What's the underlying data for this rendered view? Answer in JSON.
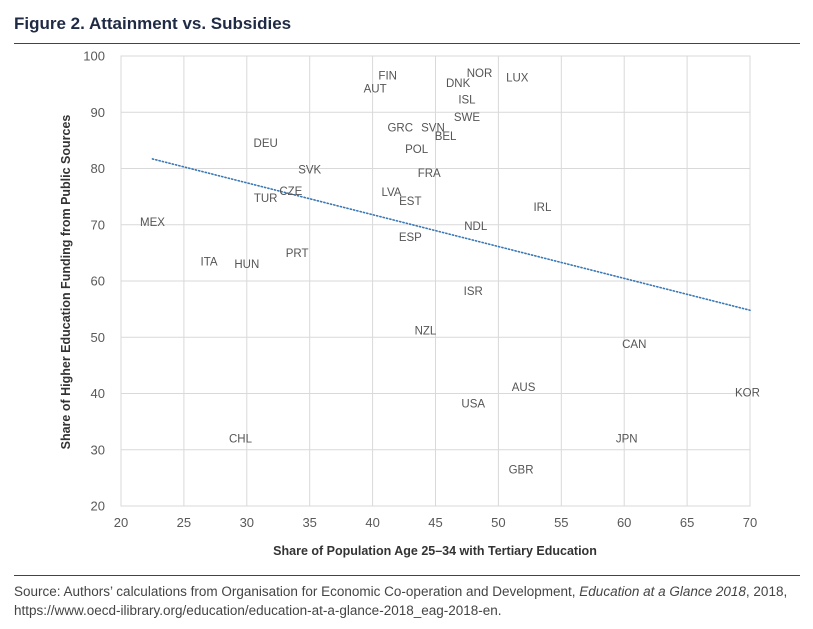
{
  "figure": {
    "title": "Figure 2. Attainment vs. Subsidies"
  },
  "source": {
    "prefix": "Source: Authors’ calculations from Organisation for Economic Co-operation and Development, ",
    "title": "Education at a Glance 2018",
    "suffix": ", 2018,",
    "url": "https://www.oecd-ilibrary.org/education/education-at-a-glance-2018_eag-2018-en."
  },
  "colors": {
    "grid": "#d9d9d9",
    "axis_text": "#595959",
    "label_text": "#555555",
    "trend": "#3a78b5",
    "title": "#1f2a44"
  },
  "chart_data": {
    "type": "scatter",
    "title": "",
    "xlabel": "Share of Population Age 25–34 with Tertiary Education",
    "ylabel": "Share of Higher Education Funding from Public Sources",
    "xlim": [
      20,
      70
    ],
    "ylim": [
      20,
      100
    ],
    "xticks": [
      20,
      25,
      30,
      35,
      40,
      45,
      50,
      55,
      60,
      65,
      70
    ],
    "yticks": [
      20,
      30,
      40,
      50,
      60,
      70,
      80,
      90,
      100
    ],
    "grid": true,
    "marker": "label",
    "points": [
      {
        "label": "FIN",
        "x": 41.2,
        "y": 96.5
      },
      {
        "label": "AUT",
        "x": 40.2,
        "y": 94.2
      },
      {
        "label": "NOR",
        "x": 48.5,
        "y": 97.0
      },
      {
        "label": "LUX",
        "x": 51.5,
        "y": 96.2
      },
      {
        "label": "DNK",
        "x": 46.8,
        "y": 95.2
      },
      {
        "label": "ISL",
        "x": 47.5,
        "y": 92.3
      },
      {
        "label": "SWE",
        "x": 47.5,
        "y": 89.2
      },
      {
        "label": "GRC",
        "x": 42.2,
        "y": 87.3
      },
      {
        "label": "SVN",
        "x": 44.8,
        "y": 87.3
      },
      {
        "label": "BEL",
        "x": 45.8,
        "y": 85.8
      },
      {
        "label": "POL",
        "x": 43.5,
        "y": 83.5
      },
      {
        "label": "DEU",
        "x": 31.5,
        "y": 84.5
      },
      {
        "label": "SVK",
        "x": 35.0,
        "y": 79.8
      },
      {
        "label": "FRA",
        "x": 44.5,
        "y": 79.2
      },
      {
        "label": "LVA",
        "x": 41.5,
        "y": 75.8
      },
      {
        "label": "EST",
        "x": 43.0,
        "y": 74.2
      },
      {
        "label": "CZE",
        "x": 33.5,
        "y": 76.0
      },
      {
        "label": "TUR",
        "x": 31.5,
        "y": 74.8
      },
      {
        "label": "IRL",
        "x": 53.5,
        "y": 73.2
      },
      {
        "label": "MEX",
        "x": 22.5,
        "y": 70.5
      },
      {
        "label": "NDL",
        "x": 48.2,
        "y": 69.8
      },
      {
        "label": "ESP",
        "x": 43.0,
        "y": 67.8
      },
      {
        "label": "PRT",
        "x": 34.0,
        "y": 65.0
      },
      {
        "label": "ITA",
        "x": 27.0,
        "y": 63.5
      },
      {
        "label": "HUN",
        "x": 30.0,
        "y": 63.0
      },
      {
        "label": "ISR",
        "x": 48.0,
        "y": 58.2
      },
      {
        "label": "NZL",
        "x": 44.2,
        "y": 51.2
      },
      {
        "label": "CAN",
        "x": 60.8,
        "y": 48.8
      },
      {
        "label": "AUS",
        "x": 52.0,
        "y": 41.2
      },
      {
        "label": "KOR",
        "x": 69.8,
        "y": 40.2
      },
      {
        "label": "USA",
        "x": 48.0,
        "y": 38.2
      },
      {
        "label": "CHL",
        "x": 29.5,
        "y": 32.0
      },
      {
        "label": "JPN",
        "x": 60.2,
        "y": 32.0
      },
      {
        "label": "GBR",
        "x": 51.8,
        "y": 26.5
      }
    ],
    "trendline": {
      "style": "dotted",
      "x": [
        22.5,
        70
      ],
      "y": [
        81.7,
        54.8
      ]
    }
  }
}
